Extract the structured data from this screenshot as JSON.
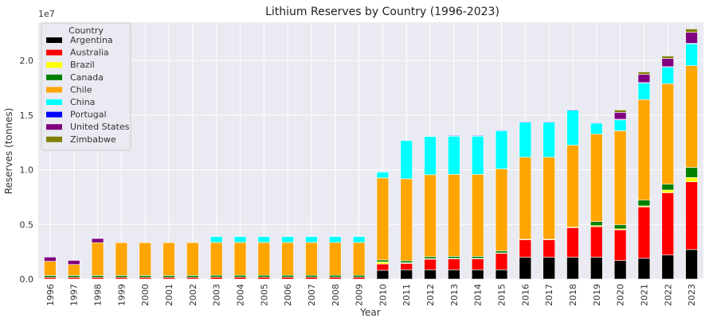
{
  "chart_data": {
    "type": "bar",
    "stacked": true,
    "title": "Lithium Reserves by Country (1996-2023)",
    "xlabel": "Year",
    "ylabel": "Reserves (tonnes)",
    "y_offset_text": "1e7",
    "ylim": [
      0,
      23500000
    ],
    "yticks": [
      0,
      5000000,
      10000000,
      15000000,
      20000000
    ],
    "ytick_labels": [
      "0.0",
      "0.5",
      "1.0",
      "1.5",
      "2.0"
    ],
    "grid": true,
    "legend": {
      "title": "Country",
      "placement": "top-left"
    },
    "categories": [
      "1996",
      "1997",
      "1998",
      "1999",
      "2000",
      "2001",
      "2002",
      "2003",
      "2004",
      "2005",
      "2006",
      "2007",
      "2008",
      "2009",
      "2010",
      "2011",
      "2012",
      "2013",
      "2014",
      "2015",
      "2016",
      "2017",
      "2018",
      "2019",
      "2020",
      "2021",
      "2022",
      "2023"
    ],
    "series": [
      {
        "name": "Argentina",
        "color": "#000000",
        "values": [
          0,
          0,
          0,
          0,
          0,
          0,
          0,
          0,
          0,
          0,
          0,
          0,
          0,
          0,
          800000,
          850000,
          850000,
          850000,
          850000,
          850000,
          2000000,
          2000000,
          2000000,
          2000000,
          1700000,
          1900000,
          2200000,
          2700000
        ]
      },
      {
        "name": "Australia",
        "color": "#ff0000",
        "values": [
          150000,
          150000,
          150000,
          150000,
          150000,
          150000,
          150000,
          170000,
          170000,
          170000,
          170000,
          170000,
          170000,
          170000,
          580000,
          580000,
          970000,
          1000000,
          1000000,
          1500000,
          1600000,
          1600000,
          2700000,
          2800000,
          2800000,
          4700000,
          5700000,
          6200000
        ]
      },
      {
        "name": "Brazil",
        "color": "#ffff00",
        "values": [
          0,
          0,
          0,
          0,
          0,
          0,
          0,
          0,
          0,
          0,
          0,
          0,
          0,
          0,
          190000,
          64000,
          46000,
          48000,
          48000,
          48000,
          48000,
          48000,
          54000,
          95000,
          95000,
          95000,
          250000,
          390000
        ]
      },
      {
        "name": "Canada",
        "color": "#008000",
        "values": [
          180000,
          180000,
          180000,
          180000,
          180000,
          180000,
          180000,
          180000,
          180000,
          180000,
          180000,
          180000,
          180000,
          180000,
          180000,
          180000,
          180000,
          180000,
          180000,
          180000,
          0,
          0,
          0,
          370000,
          370000,
          530000,
          530000,
          930000
        ]
      },
      {
        "name": "Chile",
        "color": "#ffa500",
        "values": [
          1300000,
          1000000,
          3000000,
          3000000,
          3000000,
          3000000,
          3000000,
          3000000,
          3000000,
          3000000,
          3000000,
          3000000,
          3000000,
          3000000,
          7500000,
          7500000,
          7500000,
          7500000,
          7500000,
          7500000,
          7500000,
          7500000,
          7500000,
          8000000,
          8600000,
          9200000,
          9200000,
          9300000
        ]
      },
      {
        "name": "China",
        "color": "#00ffff",
        "values": [
          0,
          0,
          0,
          0,
          0,
          0,
          0,
          540000,
          540000,
          540000,
          540000,
          540000,
          540000,
          540000,
          540000,
          3500000,
          3500000,
          3500000,
          3500000,
          3500000,
          3200000,
          3200000,
          3200000,
          1000000,
          1000000,
          1500000,
          1500000,
          2000000
        ]
      },
      {
        "name": "Portugal",
        "color": "#0000ff",
        "values": [
          0,
          0,
          0,
          0,
          0,
          0,
          0,
          0,
          0,
          0,
          0,
          0,
          0,
          0,
          0,
          0,
          10000,
          60000,
          60000,
          60000,
          60000,
          60000,
          60000,
          60000,
          60000,
          60000,
          60000,
          60000
        ]
      },
      {
        "name": "United States",
        "color": "#800080",
        "values": [
          380000,
          380000,
          380000,
          0,
          0,
          0,
          0,
          0,
          0,
          0,
          0,
          0,
          0,
          0,
          0,
          0,
          0,
          0,
          0,
          0,
          0,
          0,
          0,
          0,
          630000,
          750000,
          750000,
          1000000
        ]
      },
      {
        "name": "Zimbabwe",
        "color": "#808000",
        "values": [
          0,
          0,
          0,
          0,
          0,
          0,
          0,
          0,
          0,
          0,
          0,
          0,
          0,
          0,
          0,
          0,
          0,
          0,
          0,
          0,
          0,
          0,
          0,
          0,
          220000,
          220000,
          220000,
          310000
        ]
      }
    ]
  }
}
